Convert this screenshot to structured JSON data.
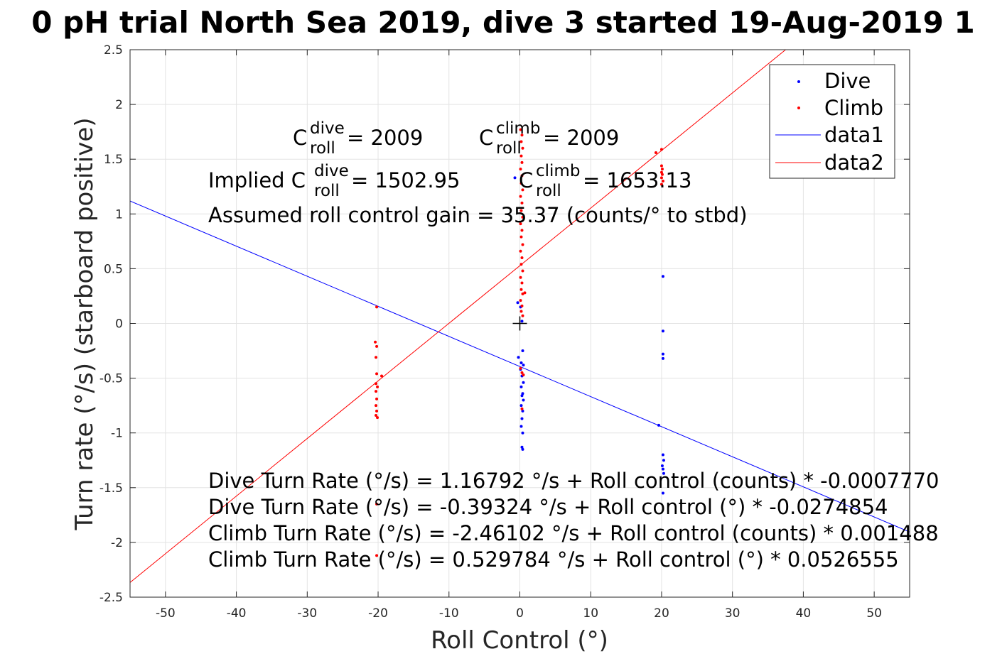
{
  "chart_data": {
    "type": "scatter",
    "title": "0 pH trial North Sea 2019, dive 3 started 19-Aug-2019 1",
    "xlabel": "Roll Control (°)",
    "ylabel": "Turn rate (°/s) (starboard positive)",
    "xlim": [
      -55,
      55
    ],
    "ylim": [
      -2.5,
      2.5
    ],
    "grid": true,
    "legend_position": "top-right",
    "x_ticks": [
      "-50",
      "-40",
      "-30",
      "-20",
      "-10",
      "0",
      "10",
      "20",
      "30",
      "40",
      "50"
    ],
    "y_ticks": [
      "2.5",
      "2",
      "1.5",
      "1",
      "0.5",
      "0",
      "-0.5",
      "-1",
      "-1.5",
      "-2",
      "-2.5"
    ],
    "series": [
      {
        "name": "Dive",
        "kind": "points",
        "color": "#0000ff",
        "points": [
          [
            -0.7,
            1.33
          ],
          [
            -0.3,
            0.19
          ],
          [
            0.1,
            0.15
          ],
          [
            0.3,
            0.02
          ],
          [
            -0.2,
            -0.31
          ],
          [
            0.4,
            -0.25
          ],
          [
            0.2,
            -0.36
          ],
          [
            0.5,
            -0.38
          ],
          [
            0.1,
            -0.42
          ],
          [
            0.3,
            -0.48
          ],
          [
            0.5,
            -0.54
          ],
          [
            0.2,
            -0.58
          ],
          [
            0.4,
            -0.64
          ],
          [
            0.3,
            -0.66
          ],
          [
            0.5,
            -0.7
          ],
          [
            0.2,
            -0.75
          ],
          [
            0.4,
            -0.8
          ],
          [
            0.3,
            -0.87
          ],
          [
            0.2,
            -0.94
          ],
          [
            0.4,
            -1.0
          ],
          [
            0.3,
            -1.13
          ],
          [
            0.4,
            -1.15
          ],
          [
            20.2,
            0.43
          ],
          [
            20.2,
            -0.07
          ],
          [
            20.2,
            -0.28
          ],
          [
            20.2,
            -0.32
          ],
          [
            19.6,
            -0.93
          ],
          [
            20.2,
            -1.2
          ],
          [
            20.3,
            -1.25
          ],
          [
            20.1,
            -1.3
          ],
          [
            20.2,
            -1.33
          ],
          [
            20.3,
            -1.37
          ],
          [
            20.2,
            -1.55
          ]
        ]
      },
      {
        "name": "Climb",
        "kind": "points",
        "color": "#ff0000",
        "points": [
          [
            -20.2,
            0.15
          ],
          [
            -20.4,
            -0.17
          ],
          [
            -20.2,
            -0.21
          ],
          [
            -20.3,
            -0.31
          ],
          [
            -20.2,
            -0.46
          ],
          [
            -19.5,
            -0.48
          ],
          [
            -20.3,
            -0.55
          ],
          [
            -20.1,
            -0.58
          ],
          [
            -20.3,
            -0.62
          ],
          [
            -20.2,
            -0.69
          ],
          [
            -20.3,
            -0.75
          ],
          [
            -20.2,
            -0.8
          ],
          [
            -20.3,
            -0.84
          ],
          [
            -20.1,
            -0.86
          ],
          [
            -20.2,
            -1.65
          ],
          [
            -20.2,
            -2.12
          ],
          [
            0.1,
            1.77
          ],
          [
            0.3,
            1.72
          ],
          [
            0.2,
            1.66
          ],
          [
            0.4,
            1.6
          ],
          [
            0.2,
            1.53
          ],
          [
            0.3,
            1.47
          ],
          [
            0.1,
            1.41
          ],
          [
            0.3,
            1.35
          ],
          [
            0.2,
            1.28
          ],
          [
            0.4,
            1.22
          ],
          [
            0.1,
            1.16
          ],
          [
            0.3,
            1.1
          ],
          [
            0.2,
            1.03
          ],
          [
            0.4,
            0.97
          ],
          [
            0.1,
            0.91
          ],
          [
            0.3,
            0.85
          ],
          [
            0.2,
            0.79
          ],
          [
            0.4,
            0.72
          ],
          [
            0.1,
            0.66
          ],
          [
            0.3,
            0.6
          ],
          [
            0.2,
            0.54
          ],
          [
            0.4,
            0.48
          ],
          [
            0.1,
            0.42
          ],
          [
            0.3,
            0.37
          ],
          [
            0.2,
            0.31
          ],
          [
            0.4,
            0.27
          ],
          [
            0.7,
            0.28
          ],
          [
            0.1,
            0.21
          ],
          [
            0.3,
            0.16
          ],
          [
            0.2,
            0.11
          ],
          [
            0.4,
            0.07
          ],
          [
            0.1,
            -0.41
          ],
          [
            0.3,
            -0.45
          ],
          [
            0.5,
            -0.47
          ],
          [
            0.3,
            -0.78
          ],
          [
            19.2,
            1.56
          ],
          [
            20.0,
            1.59
          ],
          [
            20.0,
            1.44
          ],
          [
            20.1,
            1.41
          ],
          [
            20.0,
            1.38
          ],
          [
            20.1,
            1.36
          ],
          [
            20.0,
            1.33
          ],
          [
            20.2,
            1.3
          ],
          [
            20.0,
            1.27
          ]
        ]
      },
      {
        "name": "data1",
        "kind": "line",
        "color": "#0000ff",
        "points": [
          [
            -55,
            1.118
          ],
          [
            55,
            -1.905
          ]
        ]
      },
      {
        "name": "data2",
        "kind": "line",
        "color": "#ff0000",
        "points": [
          [
            -55,
            -2.366
          ],
          [
            37.5,
            2.5
          ]
        ]
      }
    ],
    "origin_marker": [
      0,
      0
    ],
    "annotations": {
      "c_dive_base": "C",
      "c_dive_sup": "dive",
      "c_dive_sub": "roll",
      "c_dive_val": " = 2009",
      "c_climb_base": "C",
      "c_climb_sup": "climb",
      "c_climb_sub": "roll",
      "c_climb_val": " = 2009",
      "implied_prefix": "Implied C",
      "implied_dive_sup": "dive",
      "implied_dive_sub": "roll",
      "implied_dive_val": " = 1502.95",
      "implied_climb_base": "C",
      "implied_climb_sup": "climb",
      "implied_climb_sub": "roll",
      "implied_climb_val": " = 1653.13",
      "assumed_gain": "Assumed roll control gain = 35.37 (counts/° to stbd)",
      "eq1": "Dive Turn Rate (°/s) = 1.16792 °/s + Roll control (counts) * -0.0007770",
      "eq2": "Dive Turn Rate (°/s) = -0.39324 °/s + Roll control (°) * -0.0274854",
      "eq3": "Climb Turn Rate (°/s) = -2.46102 °/s + Roll control (counts) * 0.001488",
      "eq4": "Climb Turn Rate (°/s) = 0.529784 °/s + Roll control (°) * 0.0526555"
    }
  }
}
